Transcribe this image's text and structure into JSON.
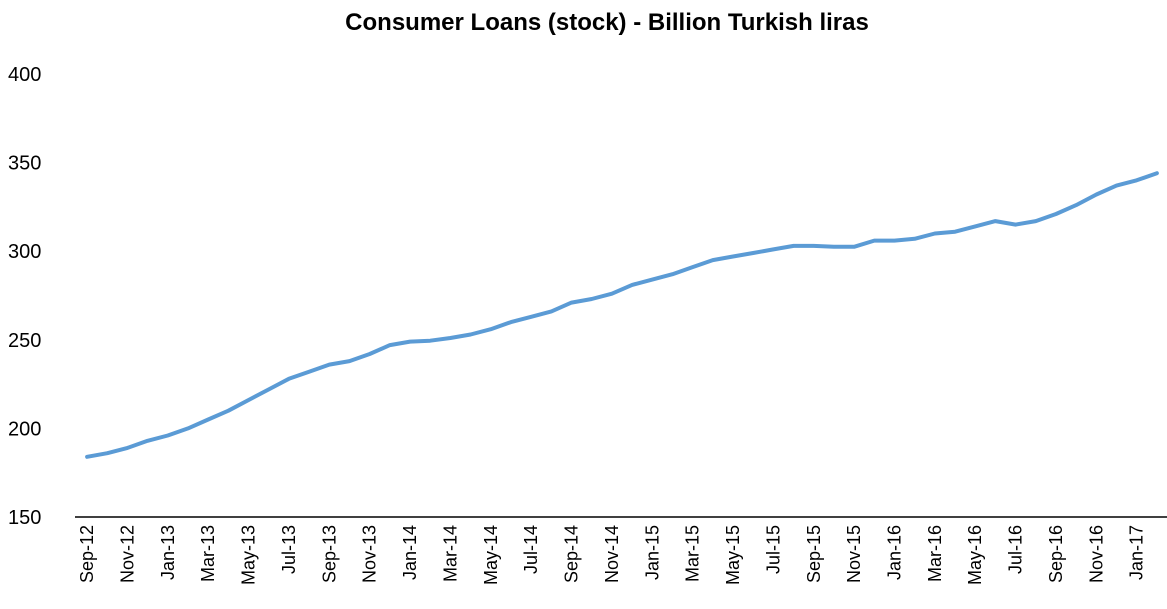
{
  "chart_data": {
    "type": "line",
    "title": "Consumer Loans (stock) - Billion Turkish liras",
    "categories": [
      "Sep-12",
      null,
      "Nov-12",
      null,
      "Jan-13",
      null,
      "Mar-13",
      null,
      "May-13",
      null,
      "Jul-13",
      null,
      "Sep-13",
      null,
      "Nov-13",
      null,
      "Jan-14",
      null,
      "Mar-14",
      null,
      "May-14",
      null,
      "Jul-14",
      null,
      "Sep-14",
      null,
      "Nov-14",
      null,
      "Jan-15",
      null,
      "Mar-15",
      null,
      "May-15",
      null,
      "Jul-15",
      null,
      "Sep-15",
      null,
      "Nov-15",
      null,
      "Jan-16",
      null,
      "Mar-16",
      null,
      "May-16",
      null,
      "Jul-16",
      null,
      "Sep-16",
      null,
      "Nov-16",
      null,
      "Jan-17",
      null
    ],
    "values": [
      184,
      186,
      189,
      193,
      196,
      200,
      205,
      210,
      216,
      222,
      228,
      232,
      236,
      238,
      242,
      247,
      249,
      249.5,
      251,
      253,
      256,
      260,
      263,
      266,
      271,
      273,
      276,
      281,
      284,
      287,
      291,
      295,
      297,
      299,
      301,
      303,
      303,
      302.5,
      302.5,
      306,
      306,
      307,
      310,
      311,
      314,
      317,
      315,
      317,
      321,
      326,
      332,
      337,
      340,
      344
    ],
    "color": "#5b9bd5",
    "ylim": [
      150,
      400
    ],
    "yticks": [
      150,
      200,
      250,
      300,
      350,
      400
    ],
    "grid": false
  }
}
